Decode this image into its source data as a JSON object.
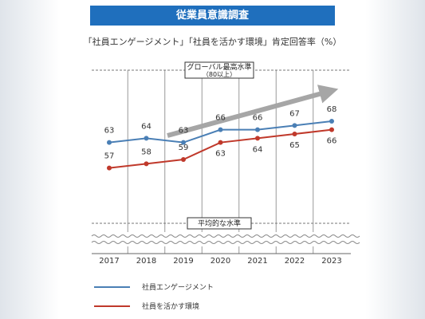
{
  "header": {
    "title": "従業員意識調査",
    "subtitle": "「社員エンゲージメント」「社員を活かす環境」肯定回答率（%）"
  },
  "chart_data": {
    "type": "line",
    "title": "",
    "x": [
      "2017",
      "2018",
      "2019",
      "2020",
      "2021",
      "2022",
      "2023"
    ],
    "ylim": [
      44,
      80
    ],
    "series": [
      {
        "name": "社員エンゲージメント",
        "values": [
          63,
          64,
          63,
          66,
          66,
          67,
          68
        ],
        "color": "#4a7fb5"
      },
      {
        "name": "社員を活かす環境",
        "values": [
          57,
          58,
          59,
          63,
          64,
          65,
          66
        ],
        "color": "#c0392b"
      }
    ],
    "annotations": {
      "global_line_label": "グローバル最高水準",
      "global_line_sublabel": "（80以上）",
      "global_line_value": 80,
      "average_line_label": "平均的な水準"
    },
    "legend_position": "bottom-left",
    "grid": true
  },
  "colors": {
    "banner": "#1f6fbd",
    "trend_arrow": "#a6a6a6",
    "grid": "#999999"
  }
}
